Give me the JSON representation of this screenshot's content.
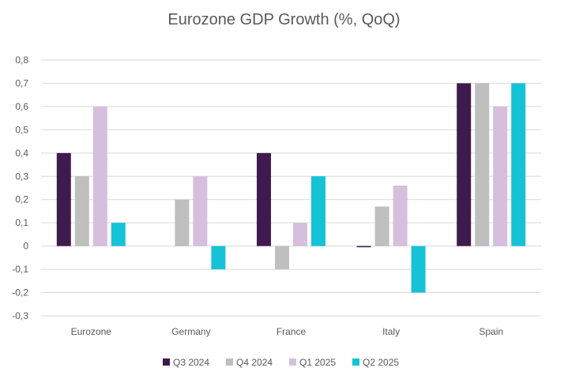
{
  "chart_data": {
    "type": "bar",
    "title": "Eurozone GDP Growth (%, QoQ)",
    "xlabel": "",
    "ylabel": "",
    "categories": [
      "Eurozone",
      "Germany",
      "France",
      "Italy",
      "Spain"
    ],
    "series": [
      {
        "name": "Q3 2024",
        "color": "#3f1a4f",
        "values": [
          0.4,
          0.0,
          0.4,
          -0.005,
          0.7
        ]
      },
      {
        "name": "Q4 2024",
        "color": "#bfbfbf",
        "values": [
          0.3,
          0.2,
          -0.1,
          0.17,
          0.7
        ]
      },
      {
        "name": "Q1 2025",
        "color": "#d5bfdd",
        "values": [
          0.6,
          0.3,
          0.1,
          0.26,
          0.6
        ]
      },
      {
        "name": "Q2 2025",
        "color": "#16c3d6",
        "values": [
          0.1,
          -0.1,
          0.3,
          -0.2,
          0.7
        ]
      }
    ],
    "ylim": [
      -0.3,
      0.8
    ],
    "yticks": [
      0.8,
      0.7,
      0.6,
      0.5,
      0.4,
      0.3,
      0.2,
      0.1,
      0,
      -0.1,
      -0.2,
      -0.3
    ],
    "ytick_labels": [
      "0,8",
      "0,7",
      "0,6",
      "0,5",
      "0,4",
      "0,3",
      "0,2",
      "0,1",
      "0",
      "-0,1",
      "-0,2",
      "-0,3"
    ],
    "grid": true,
    "legend_position": "bottom"
  }
}
